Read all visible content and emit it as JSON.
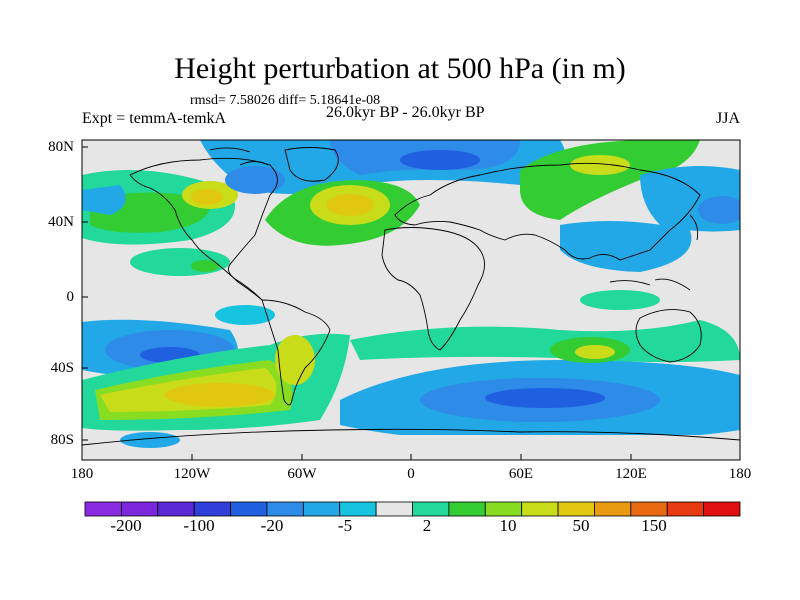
{
  "title": "Height perturbation at 500 hPa (in m)",
  "stats": "rmsd= 7.58026 diff= 5.18641e-08",
  "experiment": "Expt = temmA-temkA",
  "period": "26.0kyr BP - 26.0kyr BP",
  "season": "JJA",
  "axes": {
    "lat_labels": [
      "80N",
      "40N",
      "0",
      "40S",
      "80S"
    ],
    "lon_labels": [
      "180",
      "120W",
      "60W",
      "0",
      "60E",
      "120E",
      "180"
    ]
  },
  "colorbar": {
    "colors": [
      "#8a2be2",
      "#7b28dc",
      "#5a2ad6",
      "#2f3fd8",
      "#1f5fe0",
      "#2e8be8",
      "#22a8e6",
      "#16c4e0",
      "#e6e6e6",
      "#22d89a",
      "#33cc33",
      "#88dd22",
      "#c8dc1a",
      "#e0c810",
      "#e89a10",
      "#e86a10",
      "#e83a10",
      "#e01010"
    ],
    "labels": [
      "-200",
      "-100",
      "-20",
      "-5",
      "2",
      "10",
      "50",
      "150"
    ]
  },
  "map": {
    "projection": "cylindrical equidistant",
    "ocean_land_background": "#e6e6e6"
  }
}
